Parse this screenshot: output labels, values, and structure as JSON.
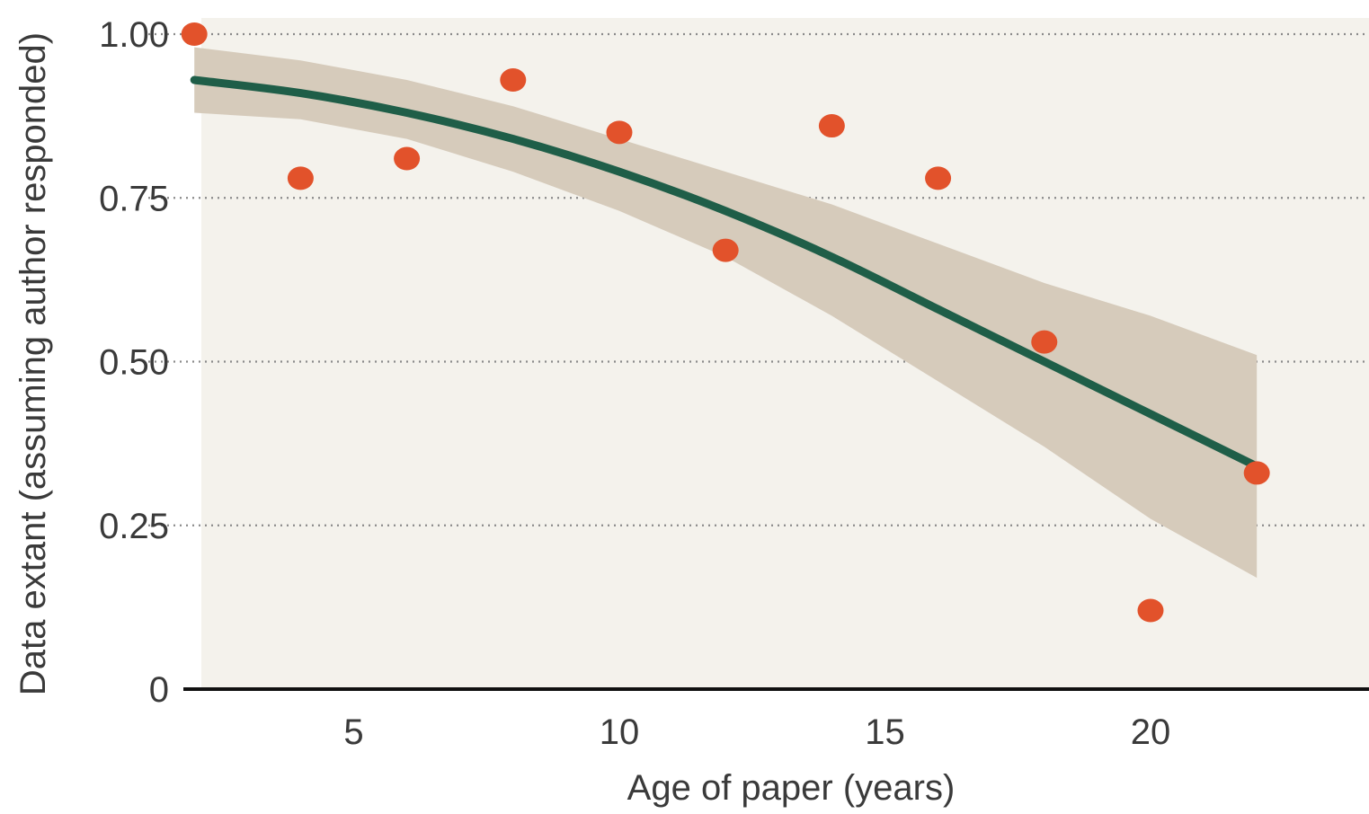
{
  "chart_data": {
    "type": "scatter",
    "title": "",
    "xlabel": "Age of paper (years)",
    "ylabel": "Data extant (assuming author responded)",
    "xlim": [
      1.1,
      23.3
    ],
    "ylim": [
      0,
      1
    ],
    "x_ticks": [
      5,
      10,
      15,
      20
    ],
    "x_tick_labels": [
      "5",
      "10",
      "15",
      "20"
    ],
    "y_ticks": [
      0,
      0.25,
      0.5,
      0.75,
      1.0
    ],
    "y_tick_labels": [
      "0",
      "0.25",
      "0.50",
      "0.75",
      "1.00"
    ],
    "grid": "horizontal-dotted",
    "series": [
      {
        "kind": "points",
        "x": [
          2,
          4,
          6,
          8,
          10,
          12,
          14,
          16,
          18,
          20,
          22
        ],
        "y": [
          1.0,
          0.78,
          0.81,
          0.93,
          0.85,
          0.67,
          0.86,
          0.78,
          0.53,
          0.12,
          0.33
        ]
      },
      {
        "kind": "fit",
        "x": [
          2,
          4,
          6,
          8,
          10,
          12,
          14,
          16,
          18,
          20,
          22
        ],
        "y": [
          0.93,
          0.91,
          0.88,
          0.84,
          0.79,
          0.73,
          0.66,
          0.58,
          0.5,
          0.42,
          0.34
        ]
      },
      {
        "kind": "band",
        "x": [
          2,
          4,
          6,
          8,
          10,
          12,
          14,
          16,
          18,
          20,
          22
        ],
        "lower": [
          0.88,
          0.87,
          0.84,
          0.79,
          0.73,
          0.66,
          0.57,
          0.47,
          0.37,
          0.26,
          0.17
        ],
        "upper": [
          0.98,
          0.96,
          0.93,
          0.89,
          0.84,
          0.79,
          0.74,
          0.68,
          0.62,
          0.57,
          0.51
        ]
      }
    ],
    "colors": {
      "points": "#e2522b",
      "fit": "#1f5e48",
      "band": "#d6cbbb",
      "plot_background": "#f4f2ec",
      "grid": "#8a8a8a",
      "axis": "#111111"
    }
  }
}
